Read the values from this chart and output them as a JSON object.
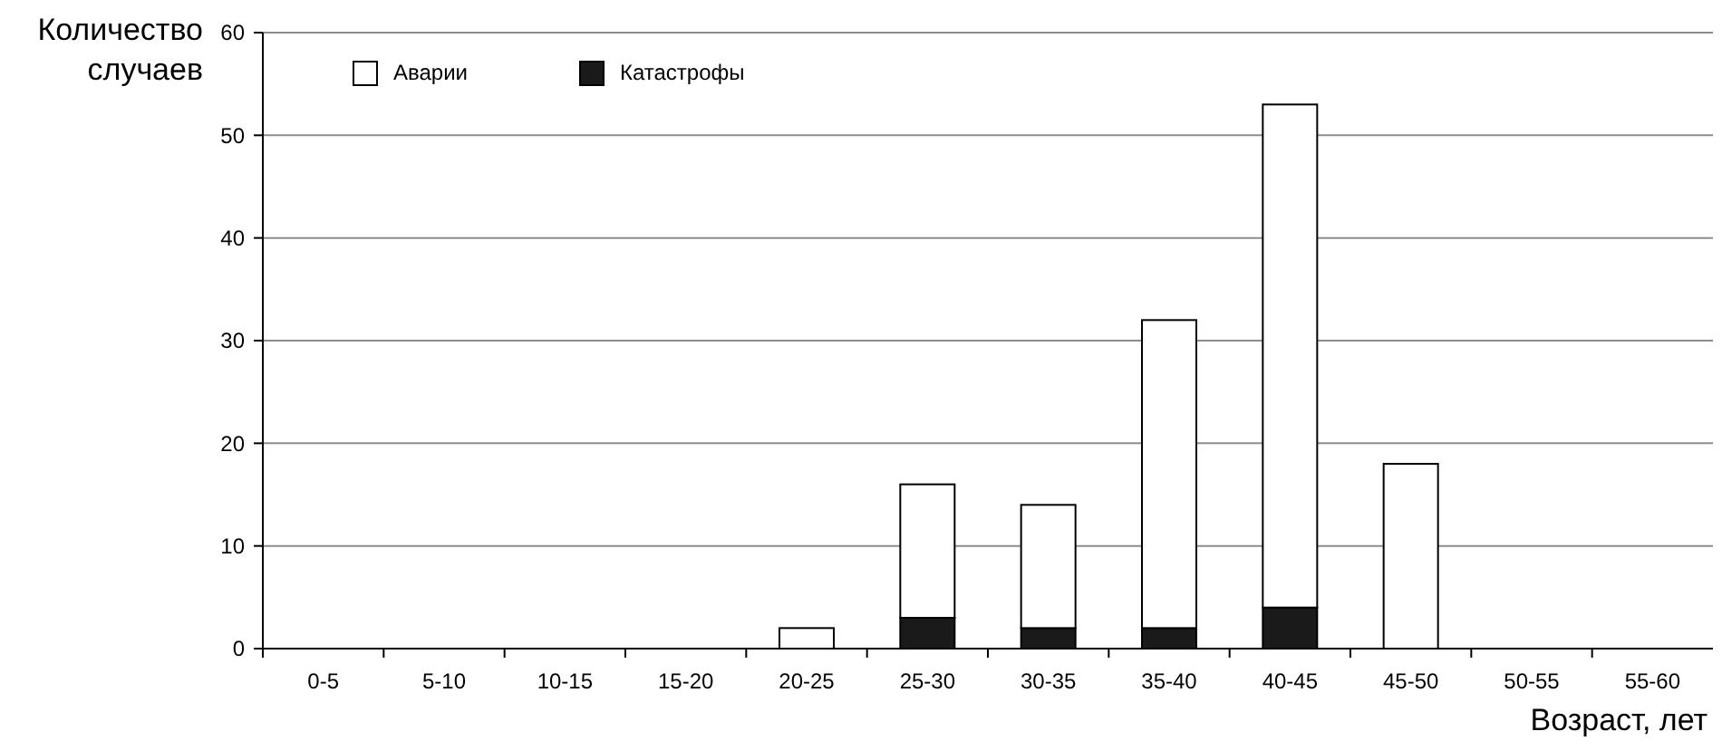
{
  "chart_data": {
    "type": "bar",
    "stacked": true,
    "ylabel": "Количество случаев",
    "xlabel": "Возраст, лет",
    "categories": [
      "0-5",
      "5-10",
      "10-15",
      "15-20",
      "20-25",
      "25-30",
      "30-35",
      "35-40",
      "40-45",
      "45-50",
      "50-55",
      "55-60"
    ],
    "series": [
      {
        "name": "Катастрофы",
        "color": "#1a1a1a",
        "values": [
          0,
          0,
          0,
          0,
          0,
          3,
          2,
          2,
          4,
          0,
          0,
          0
        ]
      },
      {
        "name": "Аварии",
        "color": "#ffffff",
        "values": [
          0,
          0,
          0,
          0,
          2,
          13,
          12,
          30,
          49,
          18,
          0,
          0
        ]
      }
    ],
    "ylim": [
      0,
      60
    ],
    "yticks": [
      0,
      10,
      20,
      30,
      40,
      50,
      60
    ],
    "grid": "y",
    "legend": "top left"
  }
}
